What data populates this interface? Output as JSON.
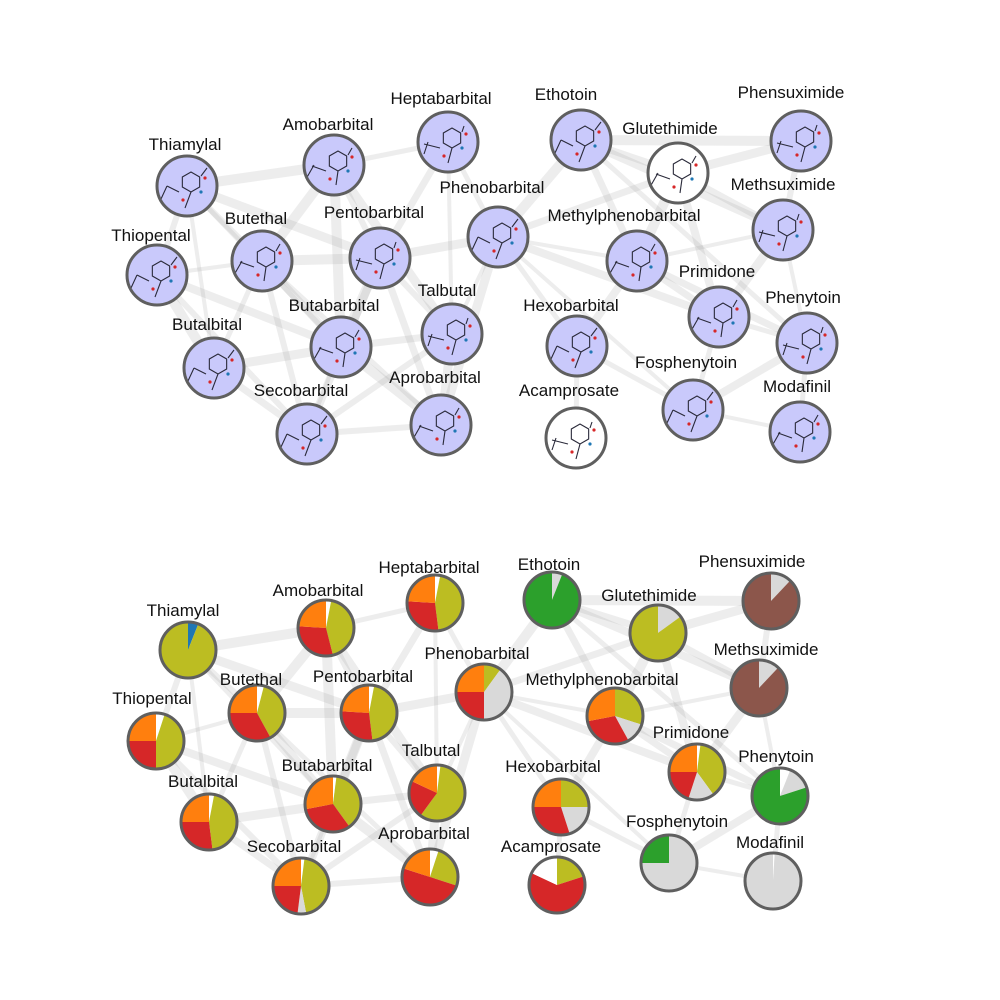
{
  "colors": {
    "node_fill": "#c9c9fb",
    "plain_fill": "#ffffff",
    "ring": "#5f5f5f",
    "edge": "#9a9a9a",
    "pie": {
      "orange": "#ff7f0e",
      "red": "#d62728",
      "olive": "#bcbd22",
      "grey": "#d9d9d9",
      "white": "#ffffff",
      "green": "#2ca02c",
      "blue": "#1f77b4",
      "brown": "#8c564b"
    }
  },
  "top_network": {
    "nodes": [
      {
        "id": "thiamylal",
        "label": "Thiamylal"
      },
      {
        "id": "amobarbital",
        "label": "Amobarbital"
      },
      {
        "id": "heptabarbital",
        "label": "Heptabarbital"
      },
      {
        "id": "ethotoin",
        "label": "Ethotoin"
      },
      {
        "id": "glutethimide",
        "label": "Glutethimide",
        "plain": true
      },
      {
        "id": "phensuximide",
        "label": "Phensuximide"
      },
      {
        "id": "thiopental",
        "label": "Thiopental"
      },
      {
        "id": "butethal",
        "label": "Butethal"
      },
      {
        "id": "pentobarbital",
        "label": "Pentobarbital"
      },
      {
        "id": "phenobarbital",
        "label": "Phenobarbital"
      },
      {
        "id": "methylphenobarbital",
        "label": "Methylphenobarbital"
      },
      {
        "id": "methsuximide",
        "label": "Methsuximide"
      },
      {
        "id": "butalbital",
        "label": "Butalbital"
      },
      {
        "id": "butabarbital",
        "label": "Butabarbital"
      },
      {
        "id": "talbutal",
        "label": "Talbutal"
      },
      {
        "id": "hexobarbital",
        "label": "Hexobarbital"
      },
      {
        "id": "primidone",
        "label": "Primidone"
      },
      {
        "id": "phenytoin",
        "label": "Phenytoin"
      },
      {
        "id": "secobarbital",
        "label": "Secobarbital"
      },
      {
        "id": "aprobarbital",
        "label": "Aprobarbital"
      },
      {
        "id": "acamprosate",
        "label": "Acamprosate",
        "plain": true
      },
      {
        "id": "fosphenytoin",
        "label": "Fosphenytoin"
      },
      {
        "id": "modafinil",
        "label": "Modafinil"
      }
    ]
  },
  "bottom_network": {
    "nodes": [
      {
        "id": "thiamylal",
        "label": "Thiamylal",
        "slices": [
          [
            "blue",
            0.06
          ],
          [
            "olive",
            0.94
          ]
        ]
      },
      {
        "id": "amobarbital",
        "label": "Amobarbital",
        "slices": [
          [
            "white",
            0.03
          ],
          [
            "olive",
            0.43
          ],
          [
            "red",
            0.3
          ],
          [
            "orange",
            0.24
          ]
        ]
      },
      {
        "id": "heptabarbital",
        "label": "Heptabarbital",
        "slices": [
          [
            "white",
            0.03
          ],
          [
            "olive",
            0.45
          ],
          [
            "red",
            0.28
          ],
          [
            "orange",
            0.24
          ]
        ]
      },
      {
        "id": "ethotoin",
        "label": "Ethotoin",
        "slices": [
          [
            "grey",
            0.06
          ],
          [
            "green",
            0.94
          ]
        ]
      },
      {
        "id": "glutethimide",
        "label": "Glutethimide",
        "slices": [
          [
            "grey",
            0.15
          ],
          [
            "olive",
            0.85
          ]
        ]
      },
      {
        "id": "phensuximide",
        "label": "Phensuximide",
        "slices": [
          [
            "grey",
            0.12
          ],
          [
            "brown",
            0.88
          ]
        ]
      },
      {
        "id": "thiopental",
        "label": "Thiopental",
        "slices": [
          [
            "white",
            0.05
          ],
          [
            "olive",
            0.45
          ],
          [
            "red",
            0.25
          ],
          [
            "orange",
            0.25
          ]
        ]
      },
      {
        "id": "butethal",
        "label": "Butethal",
        "slices": [
          [
            "white",
            0.04
          ],
          [
            "olive",
            0.38
          ],
          [
            "red",
            0.33
          ],
          [
            "orange",
            0.25
          ]
        ]
      },
      {
        "id": "pentobarbital",
        "label": "Pentobarbital",
        "slices": [
          [
            "white",
            0.03
          ],
          [
            "olive",
            0.45
          ],
          [
            "red",
            0.28
          ],
          [
            "orange",
            0.24
          ]
        ]
      },
      {
        "id": "phenobarbital",
        "label": "Phenobarbital",
        "slices": [
          [
            "olive",
            0.1
          ],
          [
            "grey",
            0.4
          ],
          [
            "red",
            0.25
          ],
          [
            "orange",
            0.25
          ]
        ]
      },
      {
        "id": "methylphenobarbital",
        "label": "Methylphenobarbital",
        "slices": [
          [
            "olive",
            0.3
          ],
          [
            "grey",
            0.12
          ],
          [
            "red",
            0.3
          ],
          [
            "orange",
            0.28
          ]
        ]
      },
      {
        "id": "methsuximide",
        "label": "Methsuximide",
        "slices": [
          [
            "grey",
            0.12
          ],
          [
            "brown",
            0.88
          ]
        ]
      },
      {
        "id": "butalbital",
        "label": "Butalbital",
        "slices": [
          [
            "white",
            0.03
          ],
          [
            "olive",
            0.45
          ],
          [
            "red",
            0.27
          ],
          [
            "orange",
            0.25
          ]
        ]
      },
      {
        "id": "butabarbital",
        "label": "Butabarbital",
        "slices": [
          [
            "white",
            0.02
          ],
          [
            "olive",
            0.38
          ],
          [
            "red",
            0.32
          ],
          [
            "orange",
            0.28
          ]
        ]
      },
      {
        "id": "talbutal",
        "label": "Talbutal",
        "slices": [
          [
            "white",
            0.02
          ],
          [
            "olive",
            0.58
          ],
          [
            "red",
            0.22
          ],
          [
            "orange",
            0.18
          ]
        ]
      },
      {
        "id": "hexobarbital",
        "label": "Hexobarbital",
        "slices": [
          [
            "olive",
            0.25
          ],
          [
            "grey",
            0.2
          ],
          [
            "red",
            0.3
          ],
          [
            "orange",
            0.25
          ]
        ]
      },
      {
        "id": "primidone",
        "label": "Primidone",
        "slices": [
          [
            "white",
            0.02
          ],
          [
            "olive",
            0.38
          ],
          [
            "grey",
            0.15
          ],
          [
            "red",
            0.2
          ],
          [
            "orange",
            0.25
          ]
        ]
      },
      {
        "id": "phenytoin",
        "label": "Phenytoin",
        "slices": [
          [
            "white",
            0.06
          ],
          [
            "grey",
            0.14
          ],
          [
            "green",
            0.8
          ]
        ]
      },
      {
        "id": "secobarbital",
        "label": "Secobarbital",
        "slices": [
          [
            "white",
            0.02
          ],
          [
            "olive",
            0.45
          ],
          [
            "grey",
            0.05
          ],
          [
            "red",
            0.23
          ],
          [
            "orange",
            0.25
          ]
        ]
      },
      {
        "id": "aprobarbital",
        "label": "Aprobarbital",
        "slices": [
          [
            "white",
            0.05
          ],
          [
            "olive",
            0.25
          ],
          [
            "red",
            0.5
          ],
          [
            "orange",
            0.2
          ]
        ]
      },
      {
        "id": "acamprosate",
        "label": "Acamprosate",
        "slices": [
          [
            "olive",
            0.2
          ],
          [
            "red",
            0.62
          ],
          [
            "white",
            0.18
          ]
        ]
      },
      {
        "id": "fosphenytoin",
        "label": "Fosphenytoin",
        "slices": [
          [
            "grey",
            0.75
          ],
          [
            "green",
            0.25
          ]
        ]
      },
      {
        "id": "modafinil",
        "label": "Modafinil",
        "slices": [
          [
            "white",
            0.01
          ],
          [
            "grey",
            0.99
          ]
        ]
      }
    ]
  },
  "edges": [
    [
      "thiamylal",
      "thiopental"
    ],
    [
      "thiamylal",
      "butethal"
    ],
    [
      "thiamylal",
      "amobarbital"
    ],
    [
      "thiamylal",
      "pentobarbital"
    ],
    [
      "thiamylal",
      "butalbital"
    ],
    [
      "thiamylal",
      "butabarbital"
    ],
    [
      "thiopental",
      "butethal"
    ],
    [
      "thiopental",
      "butalbital"
    ],
    [
      "thiopental",
      "secobarbital"
    ],
    [
      "thiopental",
      "butabarbital"
    ],
    [
      "amobarbital",
      "butethal"
    ],
    [
      "amobarbital",
      "pentobarbital"
    ],
    [
      "amobarbital",
      "heptabarbital"
    ],
    [
      "amobarbital",
      "butabarbital"
    ],
    [
      "amobarbital",
      "talbutal"
    ],
    [
      "butethal",
      "pentobarbital"
    ],
    [
      "butethal",
      "butabarbital"
    ],
    [
      "butethal",
      "butalbital"
    ],
    [
      "butethal",
      "secobarbital"
    ],
    [
      "butethal",
      "aprobarbital"
    ],
    [
      "pentobarbital",
      "butabarbital"
    ],
    [
      "pentobarbital",
      "talbutal"
    ],
    [
      "pentobarbital",
      "secobarbital"
    ],
    [
      "pentobarbital",
      "aprobarbital"
    ],
    [
      "pentobarbital",
      "heptabarbital"
    ],
    [
      "pentobarbital",
      "phenobarbital"
    ],
    [
      "butalbital",
      "butabarbital"
    ],
    [
      "butalbital",
      "secobarbital"
    ],
    [
      "butabarbital",
      "secobarbital"
    ],
    [
      "butabarbital",
      "talbutal"
    ],
    [
      "butabarbital",
      "aprobarbital"
    ],
    [
      "talbutal",
      "aprobarbital"
    ],
    [
      "talbutal",
      "secobarbital"
    ],
    [
      "talbutal",
      "phenobarbital"
    ],
    [
      "secobarbital",
      "aprobarbital"
    ],
    [
      "heptabarbital",
      "phenobarbital"
    ],
    [
      "heptabarbital",
      "talbutal"
    ],
    [
      "phenobarbital",
      "methylphenobarbital"
    ],
    [
      "phenobarbital",
      "hexobarbital"
    ],
    [
      "phenobarbital",
      "primidone"
    ],
    [
      "phenobarbital",
      "ethotoin"
    ],
    [
      "phenobarbital",
      "glutethimide"
    ],
    [
      "phenobarbital",
      "aprobarbital"
    ],
    [
      "methylphenobarbital",
      "primidone"
    ],
    [
      "methylphenobarbital",
      "hexobarbital"
    ],
    [
      "methylphenobarbital",
      "methsuximide"
    ],
    [
      "methylphenobarbital",
      "glutethimide"
    ],
    [
      "methylphenobarbital",
      "ethotoin"
    ],
    [
      "methylphenobarbital",
      "phenytoin"
    ],
    [
      "primidone",
      "phenytoin"
    ],
    [
      "primidone",
      "methsuximide"
    ],
    [
      "primidone",
      "fosphenytoin"
    ],
    [
      "primidone",
      "glutethimide"
    ],
    [
      "ethotoin",
      "glutethimide"
    ],
    [
      "ethotoin",
      "phensuximide"
    ],
    [
      "ethotoin",
      "methsuximide"
    ],
    [
      "ethotoin",
      "phenytoin"
    ],
    [
      "glutethimide",
      "phensuximide"
    ],
    [
      "glutethimide",
      "methsuximide"
    ],
    [
      "phensuximide",
      "methsuximide"
    ],
    [
      "methsuximide",
      "phenytoin"
    ],
    [
      "phenytoin",
      "fosphenytoin"
    ],
    [
      "phenytoin",
      "modafinil"
    ],
    [
      "fosphenytoin",
      "modafinil"
    ],
    [
      "hexobarbital",
      "acamprosate"
    ],
    [
      "hexobarbital",
      "fosphenytoin"
    ],
    [
      "phenobarbital",
      "fosphenytoin"
    ]
  ]
}
